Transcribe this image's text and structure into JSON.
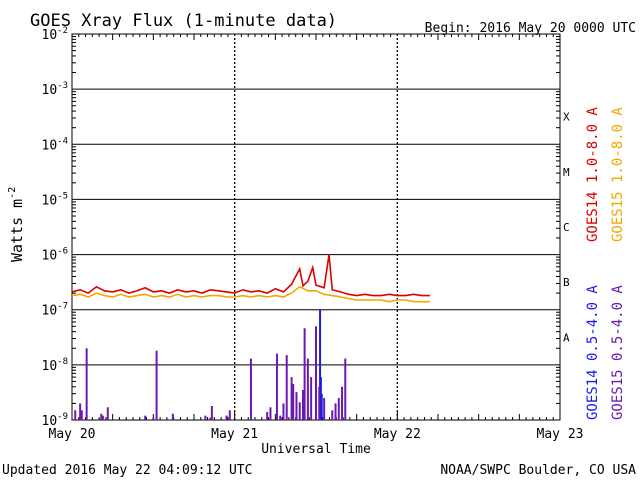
{
  "header": {
    "title": "GOES Xray Flux (1-minute data)",
    "begin": "Begin:  2016 May 20 0000 UTC"
  },
  "footer": {
    "updated": "Updated 2016 May 22 04:09:12 UTC",
    "credit": "NOAA/SWPC Boulder, CO USA"
  },
  "colors": {
    "goes14_long": "#dd0000",
    "goes15_long": "#f0a800",
    "goes14_short": "#1a1aee",
    "goes15_short": "#6a1ab0",
    "axis": "#000000"
  },
  "chart_data": {
    "type": "line",
    "title": "GOES Xray Flux (1-minute data)",
    "xlabel": "Universal Time",
    "ylabel": "Watts m",
    "ylabel_superscript": "-2",
    "yscale": "log",
    "ylim": [
      1e-09,
      0.01
    ],
    "ytick_values": [
      1e-09,
      1e-08,
      1e-07,
      1e-06,
      1e-05,
      0.0001,
      0.001,
      0.01
    ],
    "ytick_exponents": [
      "-9",
      "-8",
      "-7",
      "-6",
      "-5",
      "-4",
      "-3",
      "-2"
    ],
    "xlim_days": [
      0,
      3
    ],
    "xtick_values": [
      0,
      1,
      2,
      3
    ],
    "xtick_labels": [
      "May 20",
      "May 21",
      "May 22",
      "May 23"
    ],
    "flare_classes": [
      "A",
      "B",
      "C",
      "M",
      "X"
    ],
    "flare_class_levels": [
      1e-08,
      1e-07,
      1e-06,
      1e-05,
      0.0001
    ],
    "grid": true,
    "legend": [
      {
        "label": "GOES14 1.0-8.0 A",
        "color_key": "goes14_long"
      },
      {
        "label": "GOES15 1.0-8.0 A",
        "color_key": "goes15_long"
      },
      {
        "label": "GOES14 0.5-4.0 A",
        "color_key": "goes14_short"
      },
      {
        "label": "GOES15 0.5-4.0 A",
        "color_key": "goes15_short"
      }
    ],
    "series": [
      {
        "name": "GOES14 1.0-8.0 A",
        "style": "line",
        "color_key": "goes14_long",
        "x": [
          0,
          0.05,
          0.1,
          0.15,
          0.2,
          0.25,
          0.3,
          0.35,
          0.4,
          0.45,
          0.5,
          0.55,
          0.6,
          0.65,
          0.7,
          0.75,
          0.8,
          0.85,
          0.9,
          0.95,
          1.0,
          1.05,
          1.1,
          1.15,
          1.2,
          1.25,
          1.3,
          1.35,
          1.4,
          1.42,
          1.45,
          1.48,
          1.5,
          1.55,
          1.58,
          1.6,
          1.65,
          1.7,
          1.75,
          1.8,
          1.85,
          1.9,
          1.95,
          2.0,
          2.05,
          2.1,
          2.15,
          2.2
        ],
        "y": [
          2.1e-07,
          2.3e-07,
          2e-07,
          2.6e-07,
          2.2e-07,
          2.1e-07,
          2.3e-07,
          2e-07,
          2.2e-07,
          2.5e-07,
          2.1e-07,
          2.2e-07,
          2e-07,
          2.3e-07,
          2.1e-07,
          2.2e-07,
          2e-07,
          2.3e-07,
          2.2e-07,
          2.1e-07,
          2e-07,
          2.3e-07,
          2.1e-07,
          2.2e-07,
          2e-07,
          2.4e-07,
          2.1e-07,
          2.9e-07,
          5.5e-07,
          2.7e-07,
          3.3e-07,
          5.8e-07,
          2.8e-07,
          2.5e-07,
          1e-06,
          2.3e-07,
          2.1e-07,
          1.9e-07,
          1.8e-07,
          1.9e-07,
          1.8e-07,
          1.8e-07,
          1.9e-07,
          1.8e-07,
          1.8e-07,
          1.9e-07,
          1.8e-07,
          1.8e-07
        ]
      },
      {
        "name": "GOES15 1.0-8.0 A",
        "style": "line",
        "color_key": "goes15_long",
        "x": [
          0,
          0.05,
          0.1,
          0.15,
          0.2,
          0.25,
          0.3,
          0.35,
          0.4,
          0.45,
          0.5,
          0.55,
          0.6,
          0.65,
          0.7,
          0.75,
          0.8,
          0.85,
          0.9,
          0.95,
          1.0,
          1.05,
          1.1,
          1.15,
          1.2,
          1.25,
          1.3,
          1.35,
          1.4,
          1.45,
          1.5,
          1.55,
          1.6,
          1.65,
          1.7,
          1.75,
          1.8,
          1.85,
          1.9,
          1.95,
          2.0,
          2.05,
          2.1,
          2.15,
          2.2
        ],
        "y": [
          1.8e-07,
          1.9e-07,
          1.7e-07,
          2e-07,
          1.8e-07,
          1.7e-07,
          1.9e-07,
          1.7e-07,
          1.8e-07,
          1.9e-07,
          1.7e-07,
          1.8e-07,
          1.7e-07,
          1.9e-07,
          1.7e-07,
          1.8e-07,
          1.7e-07,
          1.8e-07,
          1.8e-07,
          1.7e-07,
          1.7e-07,
          1.8e-07,
          1.7e-07,
          1.8e-07,
          1.7e-07,
          1.8e-07,
          1.7e-07,
          2e-07,
          2.6e-07,
          2.2e-07,
          2.2e-07,
          1.9e-07,
          1.8e-07,
          1.7e-07,
          1.6e-07,
          1.5e-07,
          1.5e-07,
          1.5e-07,
          1.5e-07,
          1.4e-07,
          1.5e-07,
          1.5e-07,
          1.4e-07,
          1.4e-07,
          1.4e-07
        ]
      },
      {
        "name": "GOES14 0.5-4.0 A",
        "style": "spikes",
        "color_key": "goes14_short",
        "x": [
          1.525,
          1.53,
          1.535
        ],
        "y": [
          1e-07,
          6e-09,
          3e-09
        ]
      },
      {
        "name": "GOES15 0.5-4.0 A",
        "style": "spikes",
        "color_key": "goes15_short",
        "x": [
          0.02,
          0.05,
          0.06,
          0.09,
          0.18,
          0.19,
          0.22,
          0.45,
          0.5,
          0.52,
          0.62,
          0.82,
          0.85,
          0.86,
          0.95,
          0.97,
          1.1,
          1.2,
          1.22,
          1.26,
          1.28,
          1.3,
          1.32,
          1.35,
          1.36,
          1.38,
          1.4,
          1.42,
          1.43,
          1.45,
          1.47,
          1.5,
          1.52,
          1.55,
          1.6,
          1.62,
          1.64,
          1.66,
          1.68
        ],
        "y": [
          1.5e-09,
          2e-09,
          1.5e-09,
          2e-08,
          1.3e-09,
          1.2e-09,
          1.7e-09,
          1.2e-09,
          1.1e-09,
          1.8e-08,
          1.3e-09,
          1.2e-09,
          1.1e-09,
          1.8e-09,
          1.2e-09,
          1.5e-09,
          1.3e-08,
          1.4e-09,
          1.7e-09,
          1.6e-08,
          1.2e-09,
          2e-09,
          1.5e-08,
          6e-09,
          4.5e-09,
          3.2e-09,
          2.1e-09,
          3.5e-09,
          4.6e-08,
          1.3e-08,
          6e-09,
          5e-08,
          4e-09,
          2.5e-09,
          1.5e-09,
          2e-09,
          2.5e-09,
          4e-09,
          1.3e-08
        ]
      }
    ]
  }
}
